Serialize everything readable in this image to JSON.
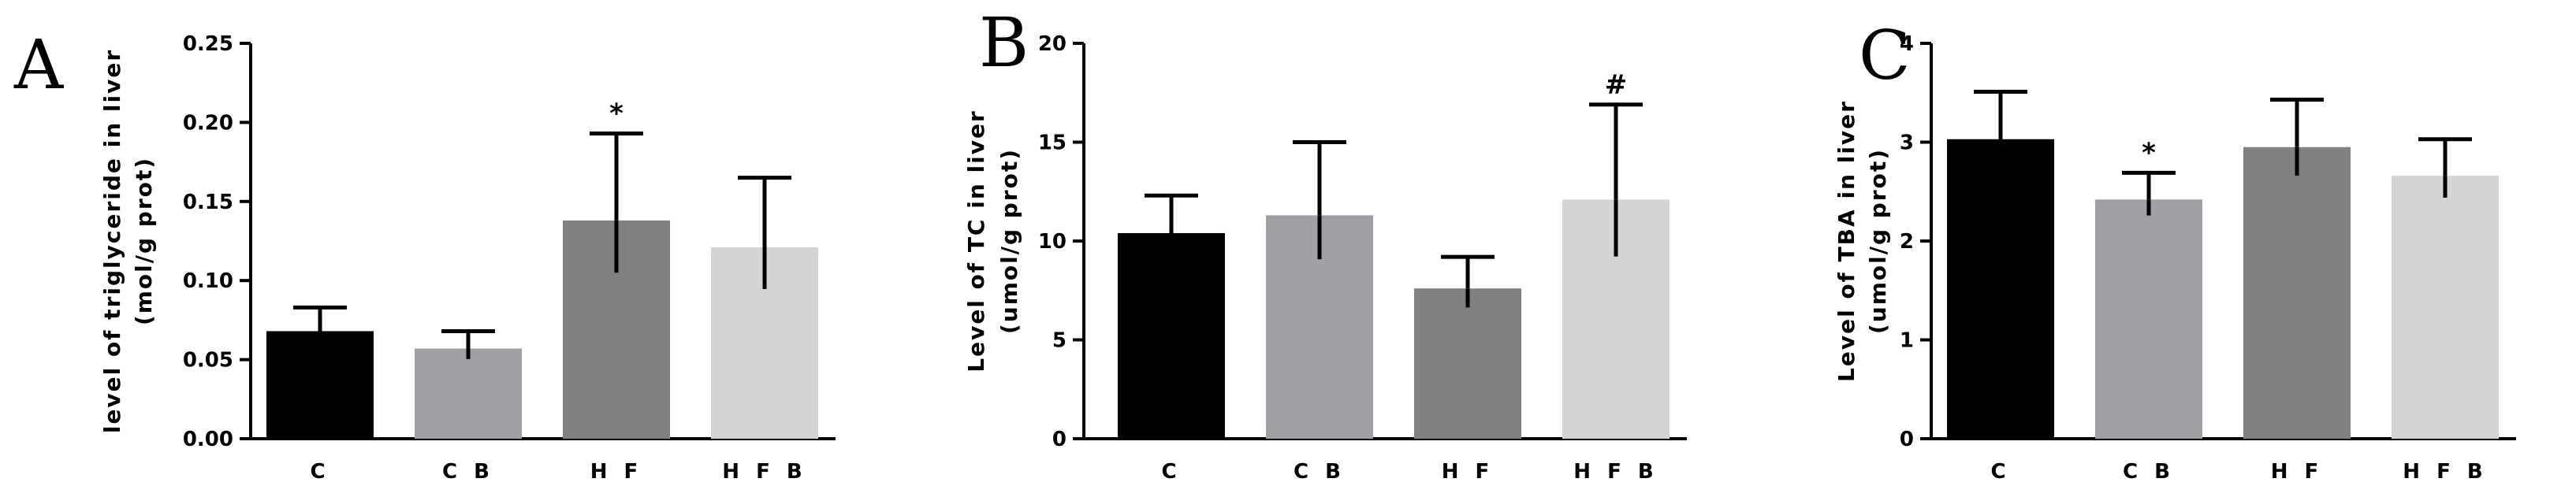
{
  "chart_data": [
    {
      "type": "bar",
      "panel_label": "A",
      "categories": [
        "C",
        "CB",
        "HF",
        "HFB"
      ],
      "category_labels": [
        "C",
        "C B",
        "H F",
        "H F B"
      ],
      "values": [
        0.068,
        0.057,
        0.138,
        0.121
      ],
      "errors": [
        0.015,
        0.011,
        0.055,
        0.044
      ],
      "annotations": [
        "",
        "",
        "*",
        ""
      ],
      "ylabel_line1": "level of triglyceride in liver",
      "ylabel_line2": "(mol/g prot)",
      "ylim": [
        0,
        0.25
      ],
      "ticks": [
        "0.00",
        "0.05",
        "0.10",
        "0.15",
        "0.20",
        "0.25"
      ],
      "grid": false
    },
    {
      "type": "bar",
      "panel_label": "B",
      "categories": [
        "C",
        "CB",
        "HF",
        "HFB"
      ],
      "category_labels": [
        "C",
        "C B",
        "H F",
        "H F B"
      ],
      "values": [
        10.4,
        11.3,
        7.6,
        12.1
      ],
      "errors": [
        1.9,
        3.7,
        1.6,
        4.8
      ],
      "annotations": [
        "",
        "",
        "",
        "#"
      ],
      "ylabel_line1": "Level of TC in liver",
      "ylabel_line2": "(umol/g prot)",
      "ylim": [
        0,
        20
      ],
      "ticks": [
        "0",
        "5",
        "10",
        "15",
        "20"
      ],
      "grid": false
    },
    {
      "type": "bar",
      "panel_label": "C",
      "categories": [
        "C",
        "CB",
        "HF",
        "HFB"
      ],
      "category_labels": [
        "C",
        "C B",
        "H F",
        "H F B"
      ],
      "values": [
        3.03,
        2.42,
        2.95,
        2.66
      ],
      "errors": [
        0.48,
        0.27,
        0.48,
        0.37
      ],
      "annotations": [
        "",
        "*",
        "",
        ""
      ],
      "ylabel_line1": "Level of TBA in liver",
      "ylabel_line2": "(umol/g prot)",
      "ylim": [
        0,
        4
      ],
      "ticks": [
        "0",
        "1",
        "2",
        "3",
        "4"
      ],
      "grid": false
    }
  ],
  "colors": {
    "C": "#000000",
    "CB": "#a0a0a4",
    "HF": "#808080",
    "HFB": "#d4d4d4",
    "axis": "#000000"
  }
}
